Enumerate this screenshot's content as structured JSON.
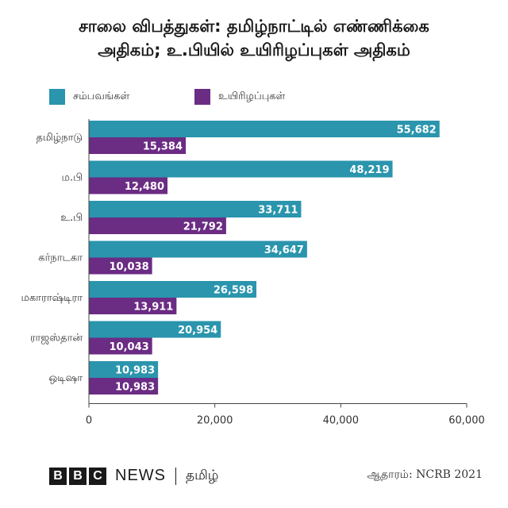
{
  "chart_data": {
    "type": "bar",
    "orientation": "horizontal",
    "title": [
      "சாலை விபத்துகள்: தமிழ்நாட்டில் எண்ணிக்கை",
      "அதிகம்; உ.பியில் உயிரிழப்புகள் அதிகம்"
    ],
    "categories": [
      "தமிழ்நாடு",
      "ம.பி",
      "உ.பி",
      "கர்நாடகா",
      "மகாராஷ்டிரா",
      "ராஜஸ்தான்",
      "ஒடிஷா"
    ],
    "series": [
      {
        "name": "சம்பவங்கள்",
        "color": "#2a95ad",
        "values": [
          55682,
          48219,
          33711,
          34647,
          26598,
          20954,
          10983
        ],
        "labels": [
          "55,682",
          "48,219",
          "33,711",
          "34,647",
          "26,598",
          "20,954",
          "10,983"
        ]
      },
      {
        "name": "உயிரிழப்புகள்",
        "color": "#6b2c84",
        "values": [
          15384,
          12480,
          21792,
          10038,
          13911,
          10043,
          10983
        ],
        "labels": [
          "15,384",
          "12,480",
          "21,792",
          "10,038",
          "13,911",
          "10,043",
          "10,983"
        ]
      }
    ],
    "xlim": [
      0,
      60000
    ],
    "xticks": [
      0,
      20000,
      40000,
      60000
    ],
    "xtick_labels": [
      "0",
      "20,000",
      "40,000",
      "60,000"
    ],
    "grid": false,
    "legend": "top-left"
  },
  "footer": {
    "brand_letters": [
      "B",
      "B",
      "C"
    ],
    "news": "NEWS",
    "language": "தமிழ்",
    "source": "ஆதாரம்: NCRB 2021"
  }
}
